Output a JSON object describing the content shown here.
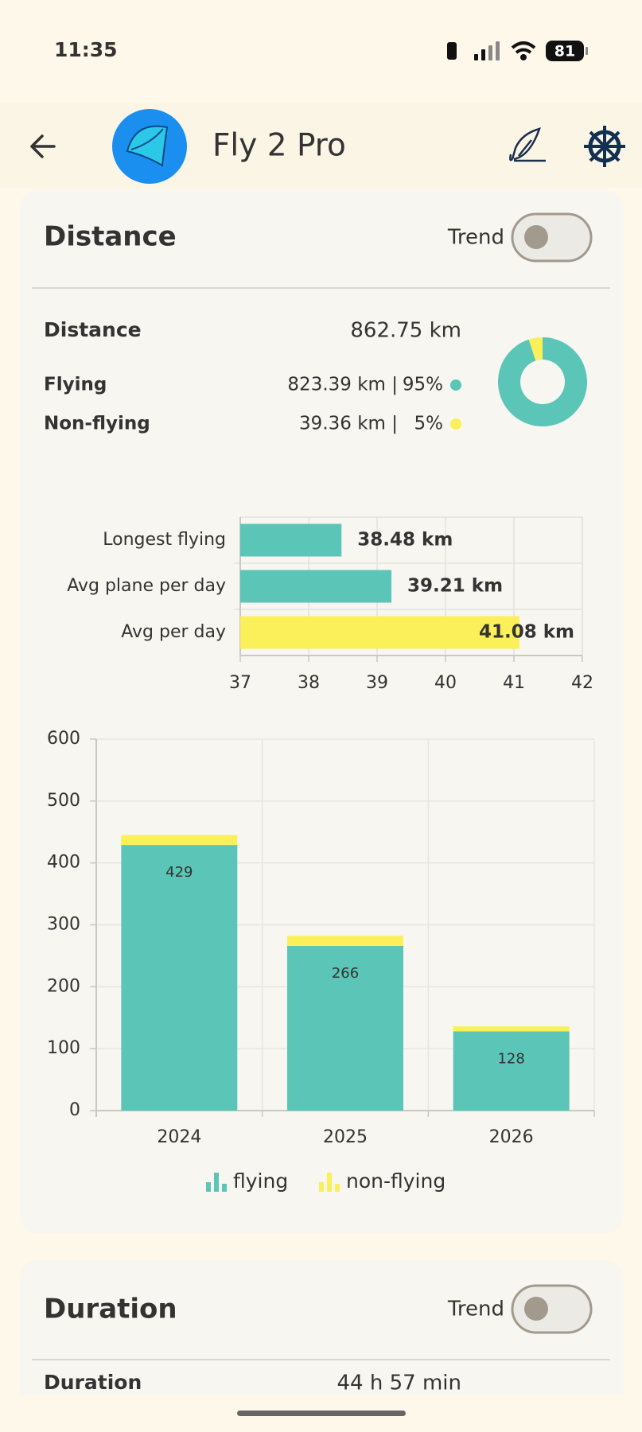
{
  "status": {
    "time": "11:35",
    "battery": "81"
  },
  "header": {
    "title": "Fly 2 Pro"
  },
  "distance": {
    "title": "Distance",
    "trend": "Trend",
    "summary": {
      "label": "Distance",
      "value": "862.75 km"
    },
    "rows": [
      {
        "value": "823.39 km |"
      },
      {
        "value": "39.36 km |"
      }
    ]
  },
  "chart_data": [
    {
      "type": "donut",
      "categories": [
        "Flying",
        "Non-flying"
      ],
      "values": [
        95,
        5
      ],
      "value_labels": [
        "95%",
        "5%"
      ],
      "colors": [
        "#5bc6b7",
        "#fbef5a"
      ]
    },
    {
      "type": "hbar",
      "categories": [
        "Longest flying",
        "Avg plane per day",
        "Avg per day"
      ],
      "values": [
        38.48,
        39.21,
        41.08
      ],
      "value_labels": [
        "38.48 km",
        "39.21 km",
        "41.08 km"
      ],
      "colors": [
        "#5bc6b7",
        "#5bc6b7",
        "#fbef5a"
      ],
      "xlim": [
        37,
        42
      ],
      "xticks": [
        37,
        38,
        39,
        40,
        41,
        42
      ],
      "grid": true
    },
    {
      "type": "stacked_bar",
      "categories": [
        "2024",
        "2025",
        "2026"
      ],
      "series": [
        {
          "name": "flying",
          "color": "#5bc6b7",
          "values": [
            429,
            266,
            128
          ]
        },
        {
          "name": "non-flying",
          "color": "#fbef5a",
          "values": [
            16,
            16,
            8
          ]
        }
      ],
      "ylim": [
        0,
        600
      ],
      "yticks": [
        0,
        100,
        200,
        300,
        400,
        500,
        600
      ],
      "grid": true,
      "legend": "bottom"
    }
  ],
  "duration": {
    "title": "Duration",
    "trend": "Trend",
    "summary": {
      "label": "Duration",
      "value": "44 h 57 min"
    }
  }
}
